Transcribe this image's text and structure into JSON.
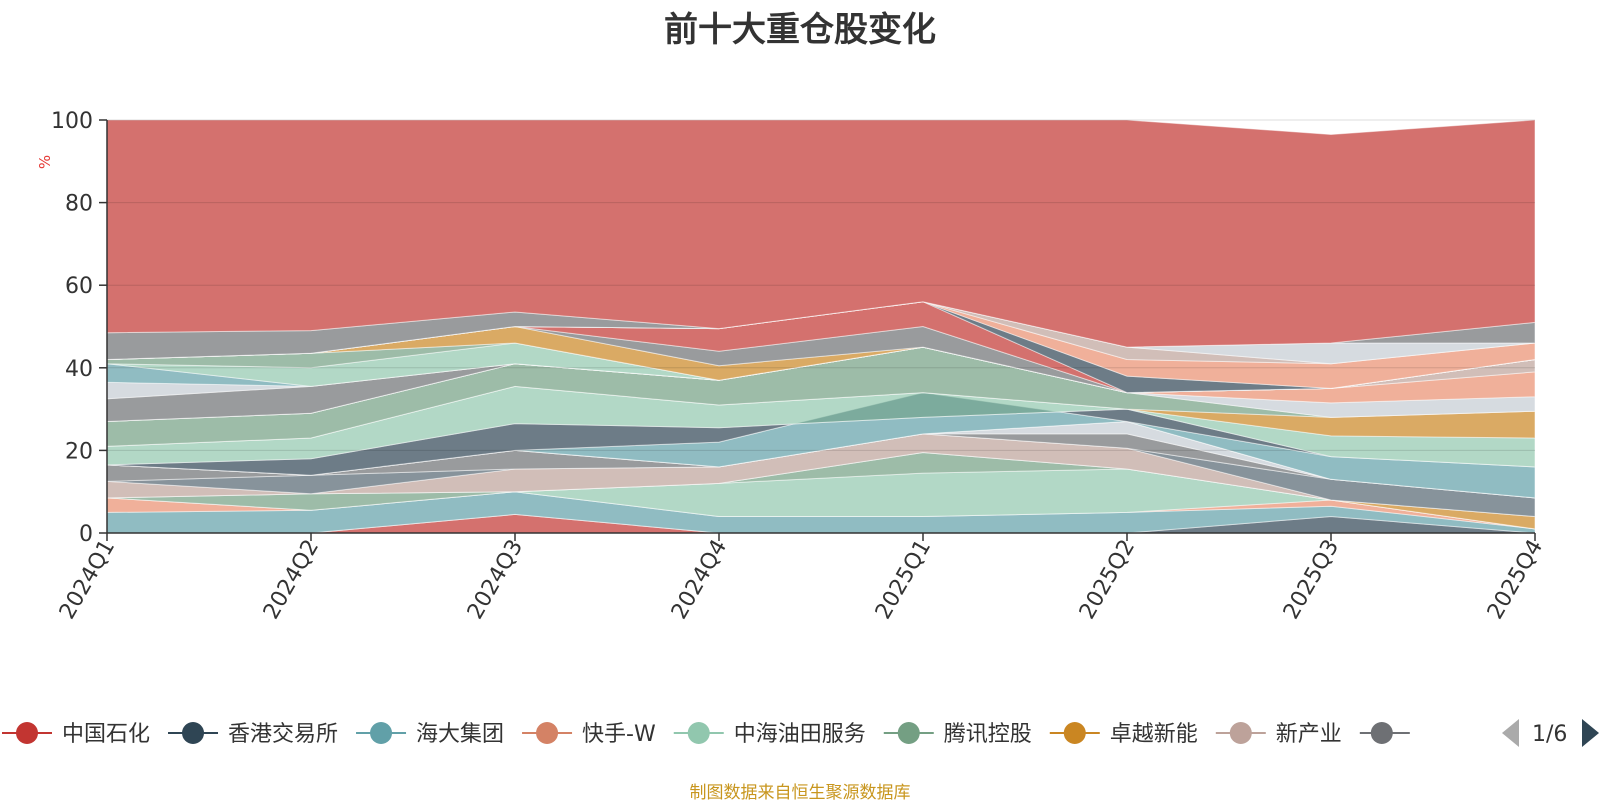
{
  "chart_data": {
    "type": "area",
    "title": "前十大重仓股变化",
    "ylabel": "%",
    "xlabel": "",
    "ylim": [
      0,
      100
    ],
    "yticks": [
      0,
      20,
      40,
      60,
      80,
      100
    ],
    "categories": [
      "2024Q1",
      "2024Q2",
      "2024Q3",
      "2024Q4",
      "2025Q1",
      "2025Q2",
      "2025Q3",
      "2025Q4"
    ],
    "bands": [
      {
        "color": "#c23531",
        "values": [
          [
            0,
            0
          ],
          [
            0,
            0
          ],
          [
            0,
            4.5
          ],
          [
            0,
            0
          ],
          [
            0,
            0
          ],
          [
            0,
            0
          ],
          [
            0,
            0
          ],
          [
            0,
            0
          ]
        ]
      },
      {
        "color": "#2f4554",
        "values": [
          [
            0,
            0
          ],
          [
            0,
            0
          ],
          [
            4.5,
            4.5
          ],
          [
            0,
            0
          ],
          [
            0,
            0
          ],
          [
            0,
            0
          ],
          [
            0,
            4
          ],
          [
            0,
            0
          ]
        ]
      },
      {
        "color": "#61a0a8",
        "values": [
          [
            0,
            5
          ],
          [
            0,
            5.5
          ],
          [
            4.5,
            10
          ],
          [
            0,
            4
          ],
          [
            0,
            4
          ],
          [
            0,
            5
          ],
          [
            4,
            6.5
          ],
          [
            0,
            1
          ]
        ]
      },
      {
        "color": "#e98f6f",
        "values": [
          [
            5,
            8.5
          ],
          [
            5.5,
            5.5
          ],
          [
            10,
            10
          ],
          [
            4,
            4
          ],
          [
            4,
            4
          ],
          [
            5,
            5
          ],
          [
            6.5,
            8
          ],
          [
            1,
            1
          ]
        ]
      },
      {
        "color": "#91c7ae",
        "values": [
          [
            8.5,
            8.5
          ],
          [
            5.5,
            5.5
          ],
          [
            10,
            10
          ],
          [
            4,
            12
          ],
          [
            4,
            14.5
          ],
          [
            5,
            15.5
          ],
          [
            8,
            8
          ],
          [
            1,
            1
          ]
        ]
      },
      {
        "color": "#749f83",
        "values": [
          [
            8.5,
            8.5
          ],
          [
            5.5,
            9.5
          ],
          [
            10,
            10
          ],
          [
            12,
            12
          ],
          [
            14.5,
            19.5
          ],
          [
            15.5,
            15.5
          ],
          [
            8,
            8
          ],
          [
            1,
            1
          ]
        ]
      },
      {
        "color": "#ca8622",
        "values": [
          [
            8.5,
            8.5
          ],
          [
            9.5,
            9.5
          ],
          [
            10,
            10
          ],
          [
            12,
            12
          ],
          [
            19.5,
            19.5
          ],
          [
            15.5,
            15.5
          ],
          [
            8,
            8
          ],
          [
            1,
            4
          ]
        ]
      },
      {
        "color": "#bda29a",
        "values": [
          [
            8.5,
            12.5
          ],
          [
            9.5,
            9.5
          ],
          [
            10,
            15.5
          ],
          [
            12,
            16
          ],
          [
            19.5,
            24
          ],
          [
            15.5,
            20.5
          ],
          [
            8,
            8
          ],
          [
            4,
            4
          ]
        ]
      },
      {
        "color": "#546570",
        "values": [
          [
            12.5,
            12.5
          ],
          [
            9.5,
            14
          ],
          [
            15.5,
            15.5
          ],
          [
            16,
            16
          ],
          [
            24,
            24
          ],
          [
            20.5,
            20.5
          ],
          [
            8,
            13
          ],
          [
            4,
            8.5
          ]
        ]
      },
      {
        "color": "#6e7074",
        "values": [
          [
            12.5,
            16.5
          ],
          [
            14,
            14
          ],
          [
            15.5,
            20
          ],
          [
            16,
            16
          ],
          [
            24,
            24
          ],
          [
            20.5,
            24
          ],
          [
            13,
            13
          ],
          [
            8.5,
            8.5
          ]
        ]
      },
      {
        "color": "#c4ccd3",
        "values": [
          [
            16.5,
            16.5
          ],
          [
            14,
            14
          ],
          [
            20,
            20
          ],
          [
            16,
            16
          ],
          [
            24,
            24
          ],
          [
            24,
            27
          ],
          [
            13,
            13
          ],
          [
            8.5,
            8.5
          ]
        ]
      },
      {
        "color": "#c23531",
        "values": [
          [
            16.5,
            16.5
          ],
          [
            14,
            14
          ],
          [
            20,
            20
          ],
          [
            16,
            16
          ],
          [
            24,
            24
          ],
          [
            27,
            27
          ],
          [
            13,
            13
          ],
          [
            8.5,
            8.5
          ]
        ]
      },
      {
        "color": "#61a0a8",
        "values": [
          [
            16.5,
            16.5
          ],
          [
            14,
            14
          ],
          [
            20,
            20
          ],
          [
            16,
            22
          ],
          [
            24,
            34
          ],
          [
            27,
            27
          ],
          [
            13,
            18.5
          ],
          [
            8.5,
            16
          ]
        ]
      },
      {
        "color": "#2f4554",
        "values": [
          [
            16.5,
            16.5
          ],
          [
            14,
            18
          ],
          [
            20,
            26.5
          ],
          [
            22,
            25.5
          ],
          [
            34,
            28
          ],
          [
            27,
            30
          ],
          [
            18.5,
            18.5
          ],
          [
            16,
            16
          ]
        ]
      },
      {
        "color": "#91c7ae",
        "values": [
          [
            16.5,
            21
          ],
          [
            18,
            23
          ],
          [
            26.5,
            35.5
          ],
          [
            25.5,
            31
          ],
          [
            28,
            34
          ],
          [
            30,
            30
          ],
          [
            18.5,
            23.5
          ],
          [
            16,
            23
          ]
        ]
      },
      {
        "color": "#ca8622",
        "values": [
          [
            21,
            21
          ],
          [
            23,
            23
          ],
          [
            35.5,
            35.5
          ],
          [
            31,
            31
          ],
          [
            34,
            34
          ],
          [
            30,
            30
          ],
          [
            23.5,
            28
          ],
          [
            23,
            29.5
          ]
        ]
      },
      {
        "color": "#749f83",
        "values": [
          [
            21,
            27
          ],
          [
            23,
            29
          ],
          [
            35.5,
            41
          ],
          [
            31,
            37
          ],
          [
            34,
            45
          ],
          [
            30,
            34
          ],
          [
            28,
            28
          ],
          [
            29.5,
            29.5
          ]
        ]
      },
      {
        "color": "#c4ccd3",
        "values": [
          [
            27,
            27
          ],
          [
            29,
            29
          ],
          [
            41,
            41
          ],
          [
            37,
            37
          ],
          [
            45,
            45
          ],
          [
            34,
            34
          ],
          [
            28,
            31.5
          ],
          [
            29.5,
            33
          ]
        ]
      },
      {
        "color": "#e98f6f",
        "values": [
          [
            27,
            27
          ],
          [
            29,
            29
          ],
          [
            41,
            41
          ],
          [
            37,
            37
          ],
          [
            45,
            45
          ],
          [
            34,
            34
          ],
          [
            31.5,
            35
          ],
          [
            33,
            39
          ]
        ]
      },
      {
        "color": "#bda29a",
        "values": [
          [
            27,
            27
          ],
          [
            29,
            29
          ],
          [
            41,
            41
          ],
          [
            37,
            37
          ],
          [
            45,
            45
          ],
          [
            34,
            34
          ],
          [
            35,
            35
          ],
          [
            39,
            42
          ]
        ]
      },
      {
        "color": "#6e7074",
        "values": [
          [
            27,
            32.5
          ],
          [
            29,
            35.5
          ],
          [
            41,
            41
          ],
          [
            37,
            37
          ],
          [
            45,
            45
          ],
          [
            34,
            34
          ],
          [
            35,
            35
          ],
          [
            42,
            42
          ]
        ]
      },
      {
        "color": "#c4ccd3",
        "values": [
          [
            32.5,
            36.5
          ],
          [
            35.5,
            35.5
          ],
          [
            41,
            41
          ],
          [
            37,
            37
          ],
          [
            45,
            45
          ],
          [
            34,
            34
          ],
          [
            35,
            35
          ],
          [
            42,
            42
          ]
        ]
      },
      {
        "color": "#61a0a8",
        "values": [
          [
            36.5,
            41
          ],
          [
            35.5,
            35.5
          ],
          [
            41,
            41
          ],
          [
            37,
            37
          ],
          [
            45,
            45
          ],
          [
            34,
            34
          ],
          [
            35,
            35
          ],
          [
            42,
            42
          ]
        ]
      },
      {
        "color": "#91c7ae",
        "values": [
          [
            41,
            41
          ],
          [
            35.5,
            40
          ],
          [
            41,
            46
          ],
          [
            37,
            37
          ],
          [
            45,
            45
          ],
          [
            34,
            34
          ],
          [
            35,
            35
          ],
          [
            42,
            42
          ]
        ]
      },
      {
        "color": "#749f83",
        "values": [
          [
            41,
            42
          ],
          [
            40,
            43.5
          ],
          [
            46,
            46
          ],
          [
            37,
            37
          ],
          [
            45,
            45
          ],
          [
            34,
            34
          ],
          [
            35,
            35
          ],
          [
            42,
            42
          ]
        ]
      },
      {
        "color": "#ca8622",
        "values": [
          [
            42,
            42
          ],
          [
            43.5,
            43.5
          ],
          [
            46,
            50
          ],
          [
            37,
            40.5
          ],
          [
            45,
            45
          ],
          [
            34,
            34
          ],
          [
            35,
            35
          ],
          [
            42,
            42
          ]
        ]
      },
      {
        "color": "#6e7074",
        "values": [
          [
            42,
            42
          ],
          [
            43.5,
            43.5
          ],
          [
            50,
            50
          ],
          [
            40.5,
            44
          ],
          [
            45,
            50
          ],
          [
            34,
            34
          ],
          [
            35,
            35
          ],
          [
            42,
            42
          ]
        ]
      },
      {
        "color": "#c23531",
        "values": [
          [
            42,
            42
          ],
          [
            43.5,
            43.5
          ],
          [
            50,
            50
          ],
          [
            44,
            49.5
          ],
          [
            50,
            56
          ],
          [
            34,
            34
          ],
          [
            35,
            35
          ],
          [
            42,
            42
          ]
        ]
      },
      {
        "color": "#2f4554",
        "values": [
          [
            42,
            42
          ],
          [
            43.5,
            43.5
          ],
          [
            50,
            50
          ],
          [
            49.5,
            49.5
          ],
          [
            56,
            56
          ],
          [
            34,
            38
          ],
          [
            35,
            35
          ],
          [
            42,
            42
          ]
        ]
      },
      {
        "color": "#e98f6f",
        "values": [
          [
            42,
            42
          ],
          [
            43.5,
            43.5
          ],
          [
            50,
            50
          ],
          [
            49.5,
            49.5
          ],
          [
            56,
            56
          ],
          [
            38,
            42
          ],
          [
            35,
            41
          ],
          [
            42,
            46
          ]
        ]
      },
      {
        "color": "#bda29a",
        "values": [
          [
            42,
            42
          ],
          [
            43.5,
            43.5
          ],
          [
            50,
            50
          ],
          [
            49.5,
            49.5
          ],
          [
            56,
            56
          ],
          [
            42,
            45
          ],
          [
            41,
            41
          ],
          [
            46,
            46
          ]
        ]
      },
      {
        "color": "#c4ccd3",
        "values": [
          [
            42,
            42
          ],
          [
            43.5,
            43.5
          ],
          [
            50,
            50
          ],
          [
            49.5,
            49.5
          ],
          [
            56,
            56
          ],
          [
            45,
            45
          ],
          [
            41,
            46
          ],
          [
            46,
            46
          ]
        ]
      },
      {
        "color": "#6e7074",
        "values": [
          [
            42,
            48.5
          ],
          [
            43.5,
            49
          ],
          [
            50,
            53.5
          ],
          [
            49.5,
            49.5
          ],
          [
            56,
            56
          ],
          [
            45,
            45
          ],
          [
            46,
            46
          ],
          [
            46,
            51
          ]
        ]
      },
      {
        "color": "#c23531",
        "values": [
          [
            48.5,
            100
          ],
          [
            49,
            100
          ],
          [
            53.5,
            100
          ],
          [
            49.5,
            100
          ],
          [
            56,
            100
          ],
          [
            45,
            100
          ],
          [
            46,
            96.5
          ],
          [
            51,
            100
          ]
        ]
      }
    ],
    "legend": {
      "items": [
        {
          "name": "中国石化",
          "color": "#c23531"
        },
        {
          "name": "香港交易所",
          "color": "#2f4554"
        },
        {
          "name": "海大集团",
          "color": "#61a0a8"
        },
        {
          "name": "快手-W",
          "color": "#d48265"
        },
        {
          "name": "中海油田服务",
          "color": "#91c7ae"
        },
        {
          "name": "腾讯控股",
          "color": "#749f83"
        },
        {
          "name": "卓越新能",
          "color": "#ca8622"
        },
        {
          "name": "新产业",
          "color": "#bda29a"
        },
        {
          "name": "",
          "color": "#6e7074"
        }
      ],
      "page": "1/6"
    }
  },
  "footer": "制图数据来自恒生聚源数据库"
}
